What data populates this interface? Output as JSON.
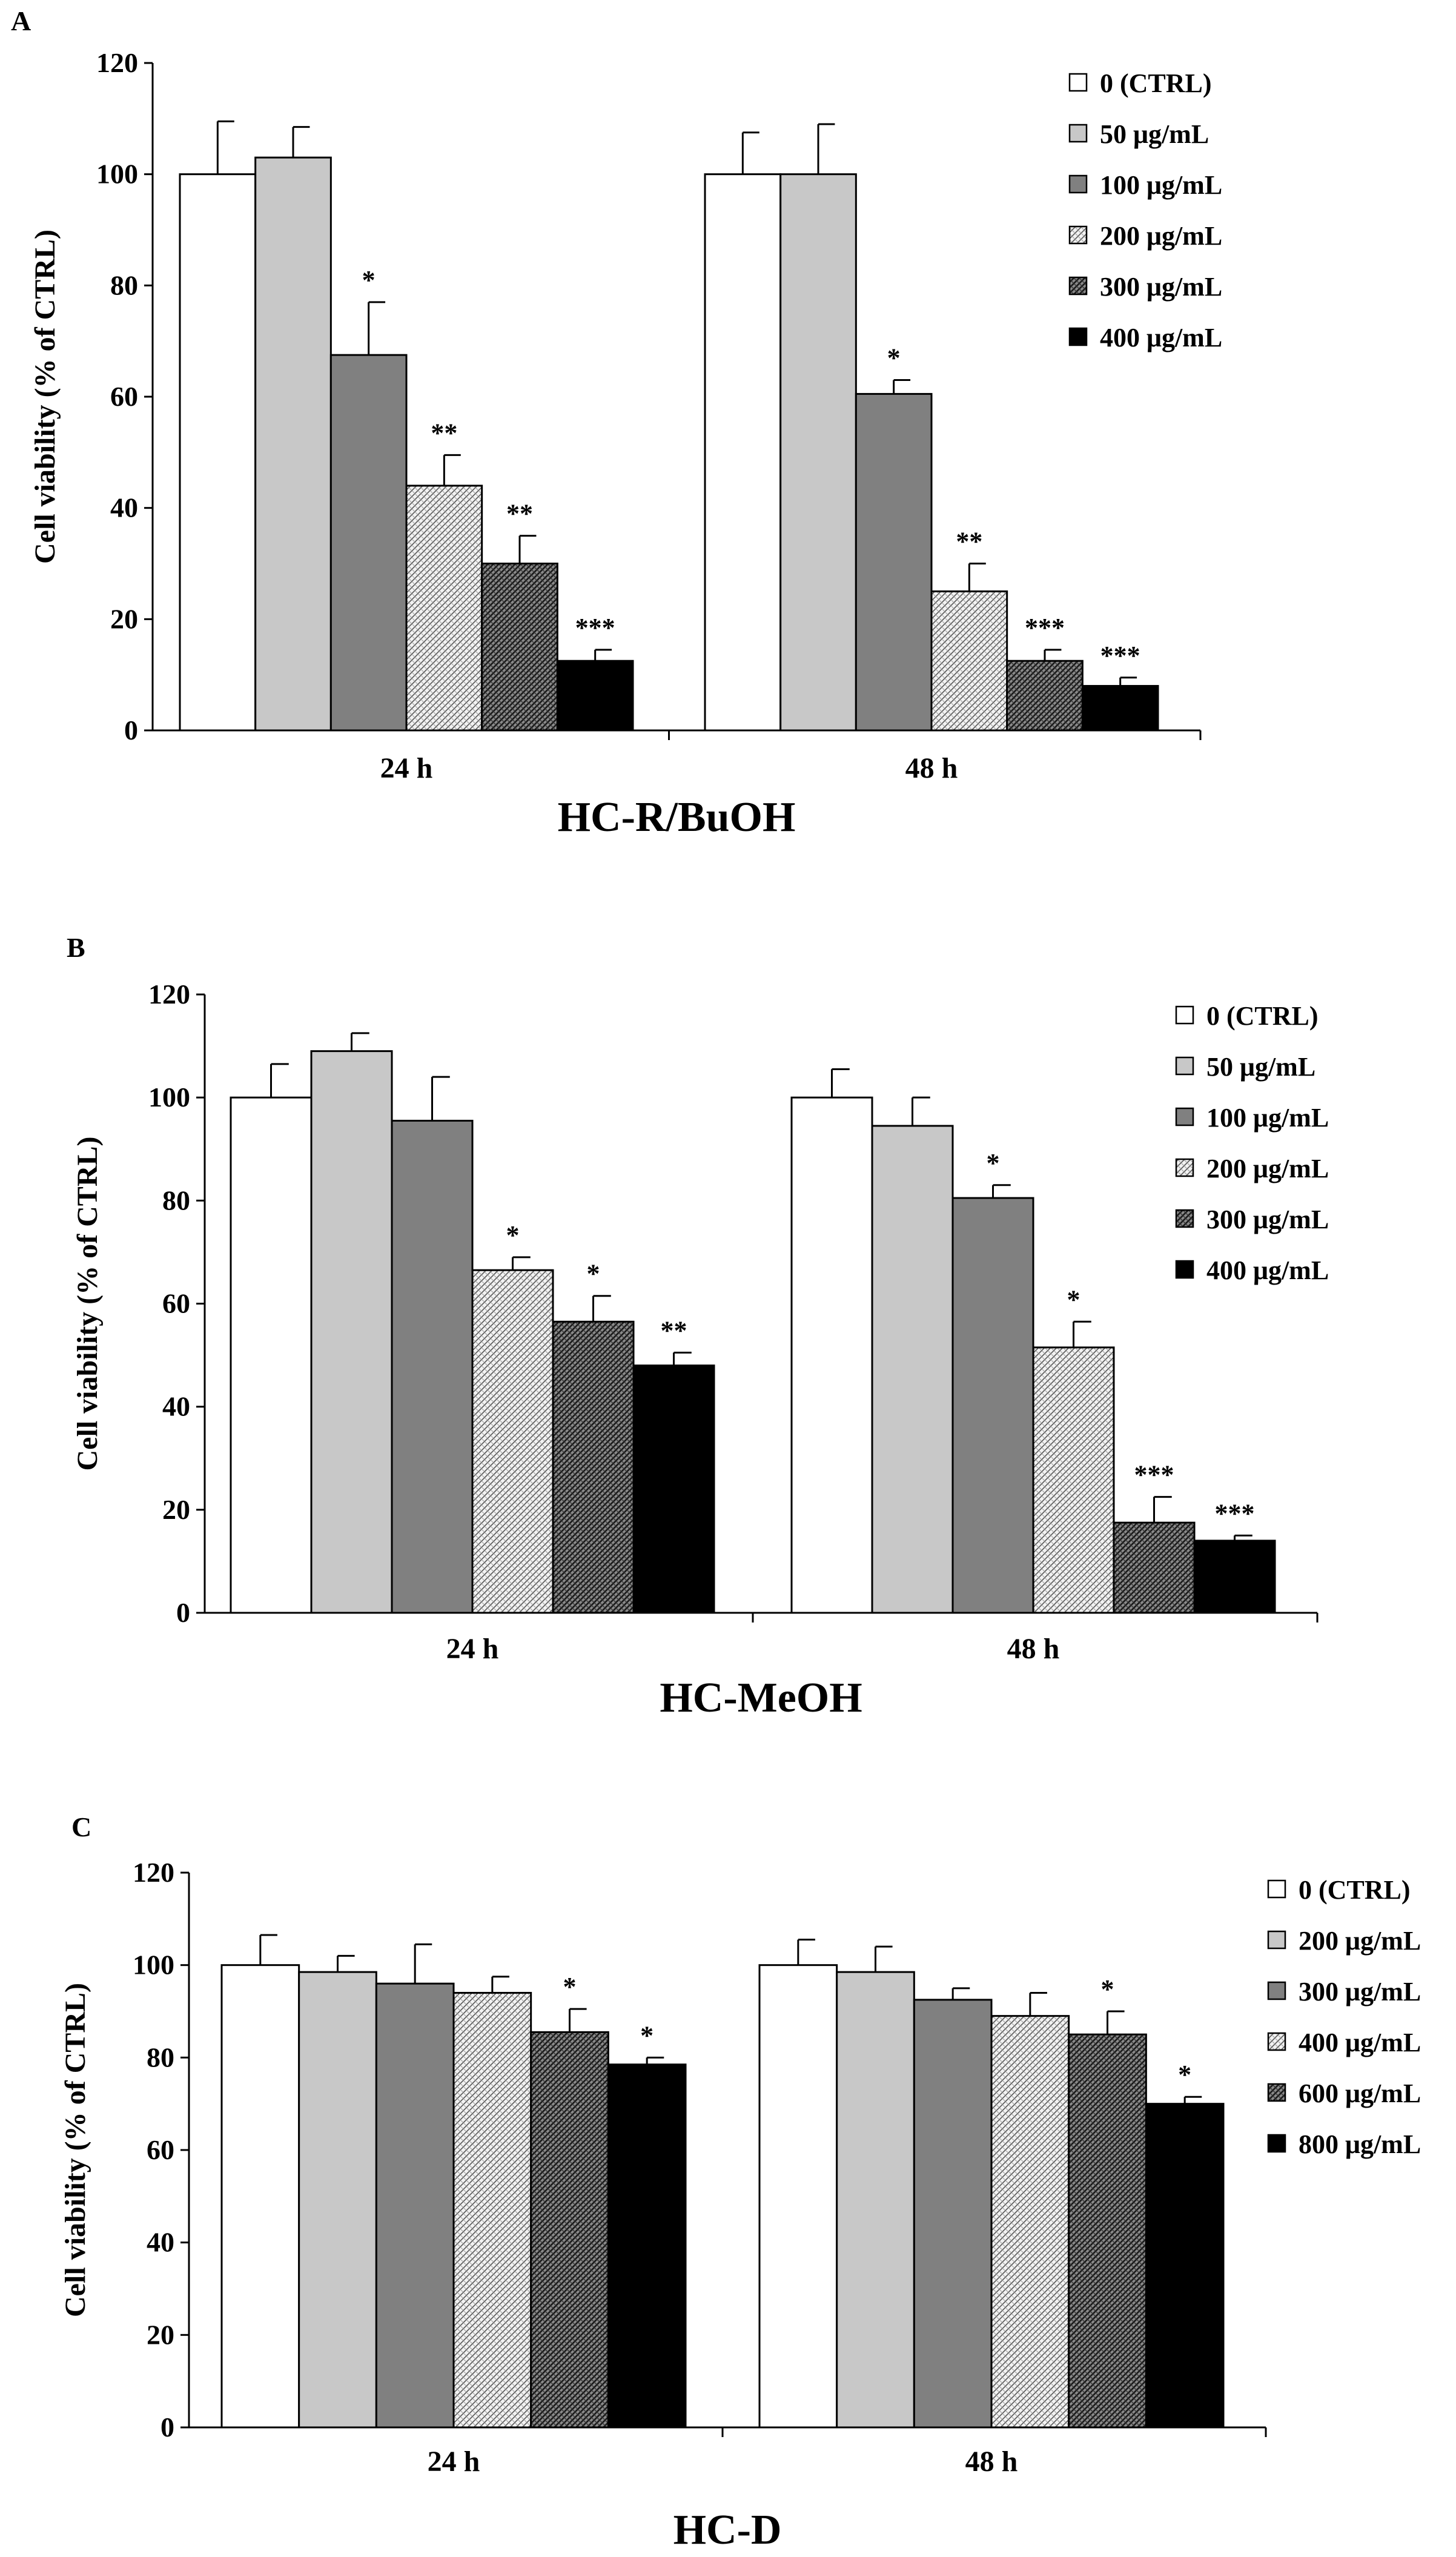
{
  "chart_data": [
    {
      "type": "bar",
      "panel": "A",
      "title": "HC-R/BuOH",
      "ylabel": "Cell viability  (% of CTRL)",
      "xlabel": "",
      "ylim": [
        0,
        120
      ],
      "yticks": [
        0,
        20,
        40,
        60,
        80,
        100,
        120
      ],
      "categories": [
        "24 h",
        "48 h"
      ],
      "series": [
        {
          "name": "0 (CTRL)",
          "values": [
            100,
            100
          ],
          "errors": [
            9.5,
            7.5
          ],
          "sig": [
            "",
            ""
          ],
          "fill": "white"
        },
        {
          "name": "50 μg/mL",
          "values": [
            103,
            100
          ],
          "errors": [
            5.5,
            9
          ],
          "sig": [
            "",
            ""
          ],
          "fill": "light"
        },
        {
          "name": "100 μg/mL",
          "values": [
            67.5,
            60.5
          ],
          "errors": [
            9.5,
            2.5
          ],
          "sig": [
            "*",
            "*"
          ],
          "fill": "mid"
        },
        {
          "name": "200 μg/mL",
          "values": [
            44,
            25
          ],
          "errors": [
            5.5,
            5
          ],
          "sig": [
            "**",
            "**"
          ],
          "fill": "hatch-light"
        },
        {
          "name": "300 μg/mL",
          "values": [
            30,
            12.5
          ],
          "errors": [
            5,
            2
          ],
          "sig": [
            "**",
            "***"
          ],
          "fill": "hatch-dark"
        },
        {
          "name": "400 μg/mL",
          "values": [
            12.5,
            8
          ],
          "errors": [
            2,
            1.5
          ],
          "sig": [
            "***",
            "***"
          ],
          "fill": "black"
        }
      ]
    },
    {
      "type": "bar",
      "panel": "B",
      "title": "HC-MeOH",
      "ylabel": "Cell viability  (% of CTRL)",
      "xlabel": "",
      "ylim": [
        0,
        120
      ],
      "yticks": [
        0,
        20,
        40,
        60,
        80,
        100,
        120
      ],
      "categories": [
        "24 h",
        "48 h"
      ],
      "series": [
        {
          "name": "0 (CTRL)",
          "values": [
            100,
            100
          ],
          "errors": [
            6.5,
            5.5
          ],
          "sig": [
            "",
            ""
          ],
          "fill": "white"
        },
        {
          "name": "50 μg/mL",
          "values": [
            109,
            94.5
          ],
          "errors": [
            3.5,
            5.5
          ],
          "sig": [
            "",
            ""
          ],
          "fill": "light"
        },
        {
          "name": "100 μg/mL",
          "values": [
            95.5,
            80.5
          ],
          "errors": [
            8.5,
            2.5
          ],
          "sig": [
            "",
            "*"
          ],
          "fill": "mid"
        },
        {
          "name": "200 μg/mL",
          "values": [
            66.5,
            51.5
          ],
          "errors": [
            2.5,
            5
          ],
          "sig": [
            "*",
            "*"
          ],
          "fill": "hatch-light"
        },
        {
          "name": "300 μg/mL",
          "values": [
            56.5,
            17.5
          ],
          "errors": [
            5,
            5
          ],
          "sig": [
            "*",
            "***"
          ],
          "fill": "hatch-dark"
        },
        {
          "name": "400 μg/mL",
          "values": [
            48,
            14
          ],
          "errors": [
            2.5,
            1
          ],
          "sig": [
            "**",
            "***"
          ],
          "fill": "black"
        }
      ]
    },
    {
      "type": "bar",
      "panel": "C",
      "title": "HC-D",
      "ylabel": "Cell viability  (% of CTRL)",
      "xlabel": "",
      "ylim": [
        0,
        120
      ],
      "yticks": [
        0,
        20,
        40,
        60,
        80,
        100,
        120
      ],
      "categories": [
        "24 h",
        "48 h"
      ],
      "series": [
        {
          "name": "0 (CTRL)",
          "values": [
            100,
            100
          ],
          "errors": [
            6.5,
            5.5
          ],
          "sig": [
            "",
            ""
          ],
          "fill": "white"
        },
        {
          "name": "200 μg/mL",
          "values": [
            98.5,
            98.5
          ],
          "errors": [
            3.5,
            5.5
          ],
          "sig": [
            "",
            ""
          ],
          "fill": "light"
        },
        {
          "name": "300 μg/mL",
          "values": [
            96,
            92.5
          ],
          "errors": [
            8.5,
            2.5
          ],
          "sig": [
            "",
            ""
          ],
          "fill": "mid"
        },
        {
          "name": "400 μg/mL",
          "values": [
            94,
            89
          ],
          "errors": [
            3.5,
            5
          ],
          "sig": [
            "",
            ""
          ],
          "fill": "hatch-light"
        },
        {
          "name": "600 μg/mL",
          "values": [
            85.5,
            85
          ],
          "errors": [
            5,
            5
          ],
          "sig": [
            "*",
            "*"
          ],
          "fill": "hatch-dark"
        },
        {
          "name": "800 μg/mL",
          "values": [
            78.5,
            70
          ],
          "errors": [
            1.5,
            1.5
          ],
          "sig": [
            "*",
            "*"
          ],
          "fill": "black"
        }
      ]
    }
  ]
}
